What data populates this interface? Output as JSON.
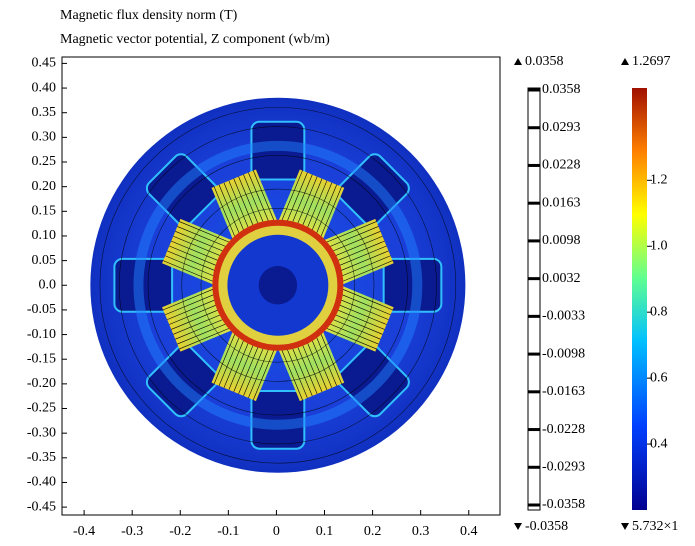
{
  "chart_data": {
    "type": "contour",
    "title": "Magnetic flux density norm (T)",
    "subtitle": "Magnetic vector potential, Z  component (wb/m)",
    "xlim": [
      -0.446,
      0.465
    ],
    "ylim": [
      -0.466,
      0.463
    ],
    "xticks": [
      -0.4,
      -0.3,
      -0.2,
      -0.1,
      0,
      0.1,
      0.2,
      0.3,
      0.4
    ],
    "yticks": [
      {
        "value": 0.45,
        "label": "0.45"
      },
      {
        "value": 0.4,
        "label": "0.40"
      },
      {
        "value": 0.35,
        "label": "0.35"
      },
      {
        "value": 0.3,
        "label": "0.30"
      },
      {
        "value": 0.25,
        "label": "0.25"
      },
      {
        "value": 0.2,
        "label": "0.20"
      },
      {
        "value": 0.15,
        "label": "0.15"
      },
      {
        "value": 0.1,
        "label": "0.10"
      },
      {
        "value": 0.05,
        "label": "0.05"
      },
      {
        "value": 0,
        "label": "0.0"
      },
      {
        "value": -0.05,
        "label": "-0.05"
      },
      {
        "value": -0.1,
        "label": "-0.10"
      },
      {
        "value": -0.15,
        "label": "-0.15"
      },
      {
        "value": -0.2,
        "label": "-0.20"
      },
      {
        "value": -0.25,
        "label": "-0.25"
      },
      {
        "value": -0.3,
        "label": "-0.30"
      },
      {
        "value": -0.35,
        "label": "-0.35"
      },
      {
        "value": -0.4,
        "label": "-0.40"
      },
      {
        "value": -0.45,
        "label": "-0.45"
      }
    ],
    "contour_max": 0.0358,
    "contour_min": -0.0358,
    "contour_levels": [
      0.0358,
      0.0293,
      0.0228,
      0.0163,
      0.0098,
      0.0032,
      -0.0033,
      -0.0098,
      -0.0163,
      -0.0228,
      -0.0293,
      -0.0358
    ],
    "color_max": 1.2697,
    "color_min_label": "5.732×1",
    "clim": [
      0.2,
      1.48
    ],
    "cticks": [
      1.2,
      {
        "value": 1,
        "label": "1.0"
      },
      0.8,
      0.6,
      0.4
    ]
  }
}
